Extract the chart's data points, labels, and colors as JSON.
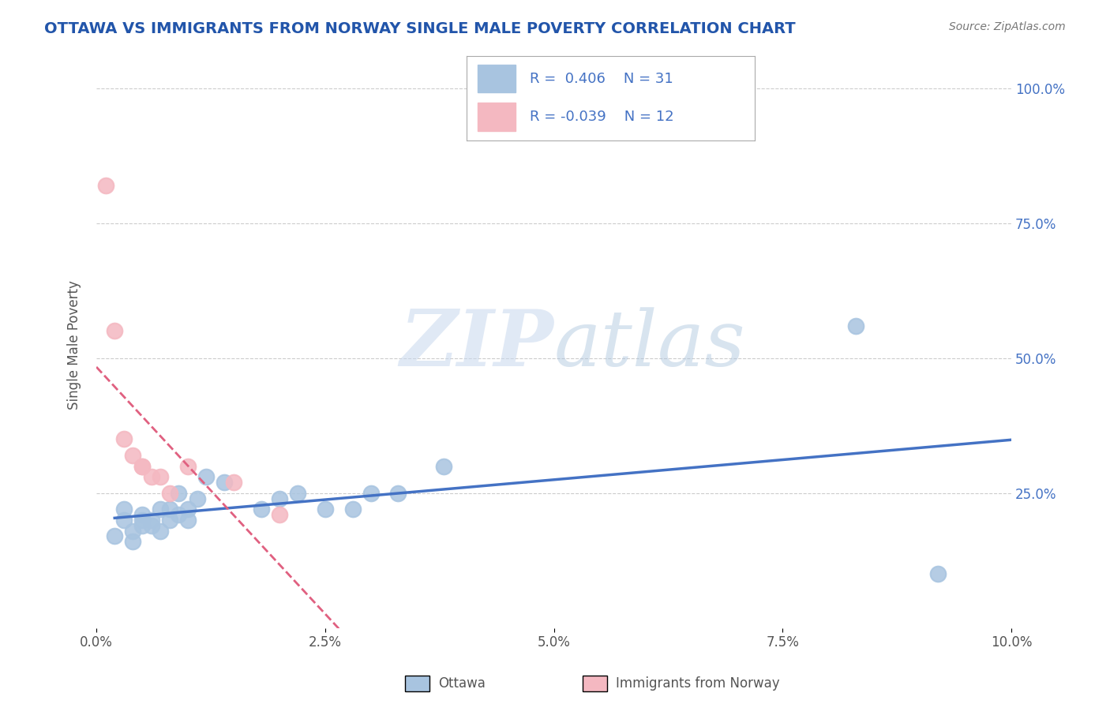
{
  "title": "OTTAWA VS IMMIGRANTS FROM NORWAY SINGLE MALE POVERTY CORRELATION CHART",
  "source": "Source: ZipAtlas.com",
  "xlabel": "",
  "ylabel": "Single Male Poverty",
  "xlim": [
    0.0,
    0.1
  ],
  "ylim": [
    0.0,
    1.05
  ],
  "xtick_labels": [
    "0.0%",
    "2.5%",
    "5.0%",
    "7.5%",
    "10.0%"
  ],
  "xtick_vals": [
    0.0,
    0.025,
    0.05,
    0.075,
    0.1
  ],
  "ytick_labels": [
    "25.0%",
    "50.0%",
    "75.0%",
    "100.0%"
  ],
  "ytick_vals": [
    0.25,
    0.5,
    0.75,
    1.0
  ],
  "ottawa_R": 0.406,
  "ottawa_N": 31,
  "norway_R": -0.039,
  "norway_N": 12,
  "ottawa_color": "#a8c4e0",
  "norway_color": "#f4b8c1",
  "ottawa_line_color": "#4472c4",
  "norway_line_color": "#e06080",
  "legend_box_color_ottawa": "#a8c4e0",
  "legend_box_color_norway": "#f4b8c1",
  "watermark_zip": "ZIP",
  "watermark_atlas": "atlas",
  "background_color": "#ffffff",
  "ottawa_x": [
    0.002,
    0.003,
    0.003,
    0.004,
    0.004,
    0.005,
    0.005,
    0.005,
    0.006,
    0.006,
    0.007,
    0.007,
    0.008,
    0.008,
    0.009,
    0.009,
    0.01,
    0.01,
    0.011,
    0.012,
    0.014,
    0.018,
    0.02,
    0.022,
    0.025,
    0.028,
    0.03,
    0.033,
    0.038,
    0.083,
    0.092
  ],
  "ottawa_y": [
    0.17,
    0.22,
    0.2,
    0.18,
    0.16,
    0.2,
    0.21,
    0.19,
    0.19,
    0.2,
    0.22,
    0.18,
    0.2,
    0.22,
    0.21,
    0.25,
    0.2,
    0.22,
    0.24,
    0.28,
    0.27,
    0.22,
    0.24,
    0.25,
    0.22,
    0.22,
    0.25,
    0.25,
    0.3,
    0.56,
    0.1
  ],
  "norway_x": [
    0.001,
    0.002,
    0.003,
    0.004,
    0.005,
    0.005,
    0.006,
    0.007,
    0.008,
    0.01,
    0.015,
    0.02
  ],
  "norway_y": [
    0.82,
    0.55,
    0.35,
    0.32,
    0.3,
    0.3,
    0.28,
    0.28,
    0.25,
    0.3,
    0.27,
    0.21
  ],
  "title_color": "#2255aa",
  "tick_color": "#4472c4",
  "ylabel_color": "#555555",
  "source_color": "#777777",
  "legend_text_color": "#4472c4",
  "bottom_legend_color": "#555555"
}
